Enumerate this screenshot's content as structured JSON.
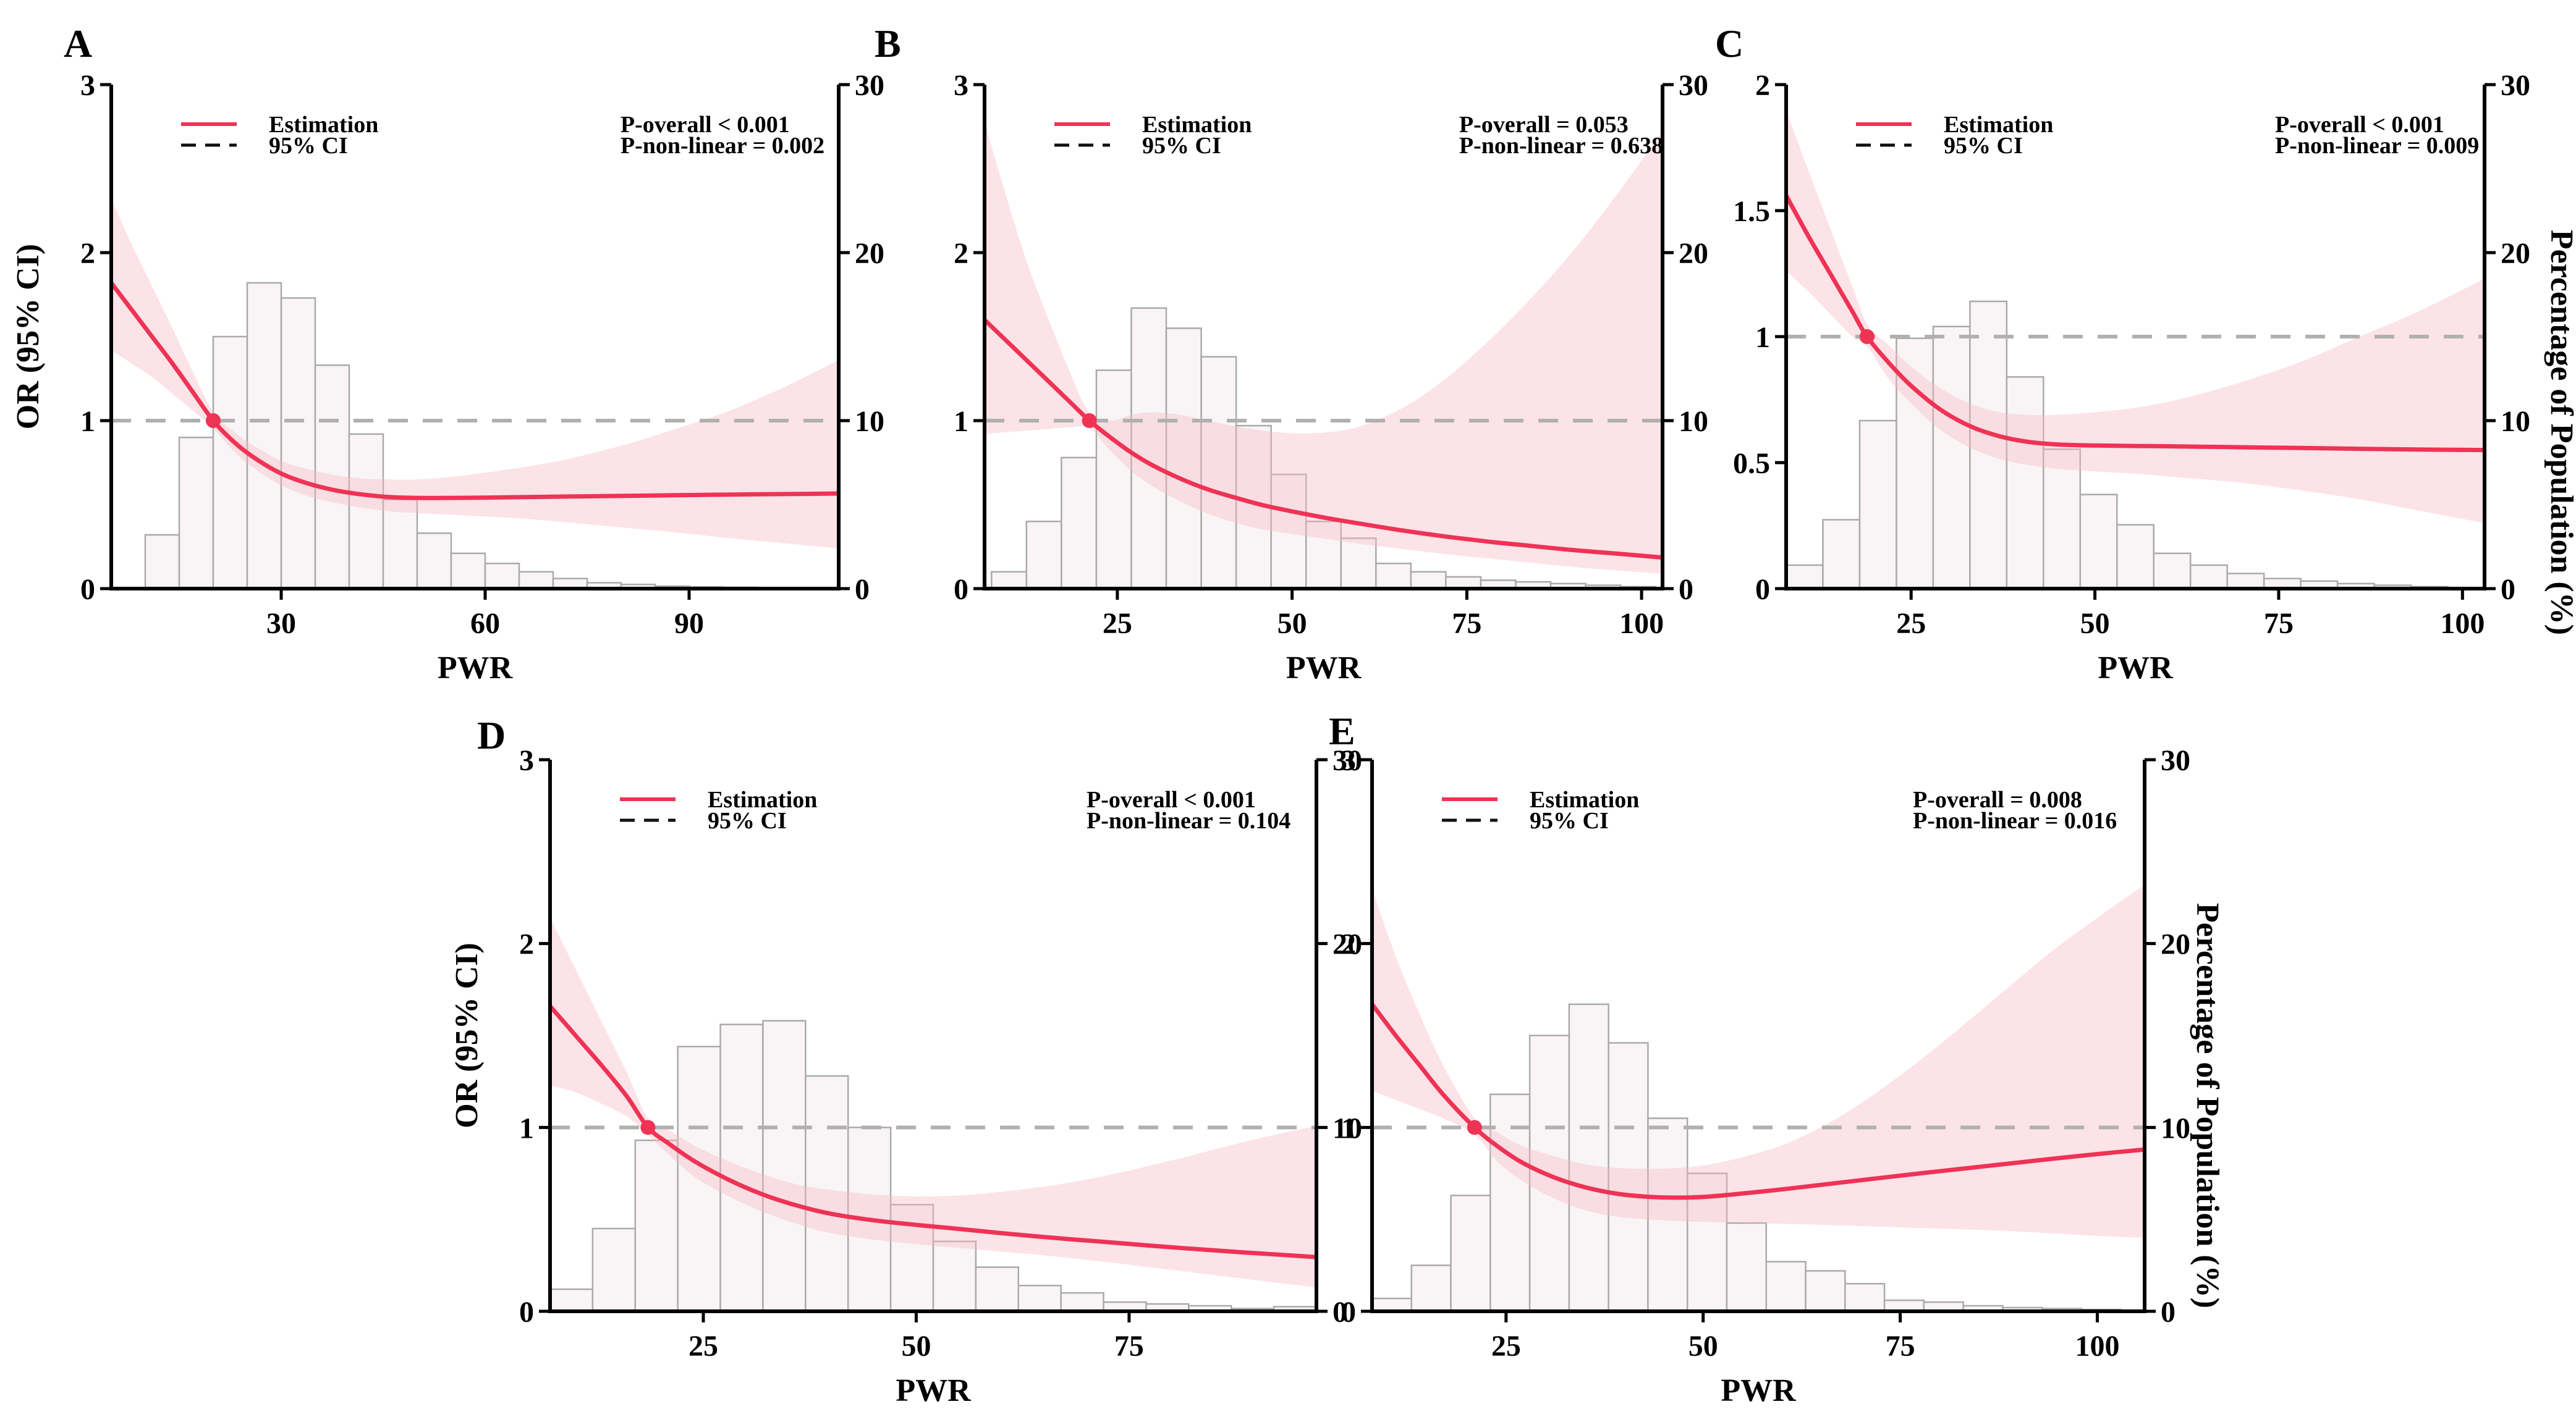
{
  "figure": {
    "x_axis_label": "PWR",
    "or_axis_label": "OR (95% CI)",
    "pct_axis_label": "Percentage of Population (%)",
    "legend": {
      "estimation_label": "Estimation",
      "ci_label": "95% CI"
    }
  },
  "colors": {
    "estimation_line": "#ee3355",
    "ci_band": "rgba(247,184,197,0.40)",
    "reference_line": "#b0b0b0",
    "histogram_fill": "#f9f5f6",
    "histogram_border": "#aaaaaa",
    "legend_ci_dash": "#111111",
    "text": "#000000"
  },
  "chart_data": [
    {
      "type": "line",
      "letter": "A",
      "annotations": {
        "p_overall": "P-overall < 0.001",
        "p_non_linear": "P-non-linear = 0.002"
      },
      "x_axis": {
        "min": 5,
        "max": 112,
        "ticks": [
          {
            "v": 30,
            "label": "30"
          },
          {
            "v": 60,
            "label": "60"
          },
          {
            "v": 90,
            "label": "90"
          }
        ]
      },
      "or_axis": {
        "min": 0,
        "max": 3,
        "show_label": true,
        "ticks": [
          {
            "v": 0,
            "label": "0"
          },
          {
            "v": 1,
            "label": "1"
          },
          {
            "v": 2,
            "label": "2"
          },
          {
            "v": 3,
            "label": "3"
          }
        ]
      },
      "pct_axis": {
        "min": 0,
        "max": 30,
        "show_label": false,
        "ticks": [
          {
            "v": 0,
            "label": "0"
          },
          {
            "v": 10,
            "label": "10"
          },
          {
            "v": 20,
            "label": "20"
          },
          {
            "v": 30,
            "label": "30"
          }
        ]
      },
      "reference_or": 1,
      "inflection_point": {
        "x": 20,
        "or": 1
      },
      "curve": [
        [
          5,
          1.82,
          1.42,
          2.32
        ],
        [
          8,
          1.66,
          1.34,
          2.05
        ],
        [
          11,
          1.5,
          1.26,
          1.8
        ],
        [
          14,
          1.34,
          1.16,
          1.55
        ],
        [
          17,
          1.17,
          1.06,
          1.29
        ],
        [
          20,
          1.0,
          0.955,
          1.05
        ],
        [
          23,
          0.875,
          0.82,
          0.935
        ],
        [
          26,
          0.78,
          0.715,
          0.85
        ],
        [
          30,
          0.685,
          0.615,
          0.76
        ],
        [
          34,
          0.625,
          0.55,
          0.71
        ],
        [
          38,
          0.585,
          0.51,
          0.675
        ],
        [
          42,
          0.56,
          0.48,
          0.655
        ],
        [
          46,
          0.545,
          0.46,
          0.65
        ],
        [
          50,
          0.54,
          0.45,
          0.65
        ],
        [
          55,
          0.54,
          0.44,
          0.665
        ],
        [
          60,
          0.542,
          0.43,
          0.69
        ],
        [
          66,
          0.545,
          0.415,
          0.725
        ],
        [
          72,
          0.548,
          0.395,
          0.77
        ],
        [
          80,
          0.552,
          0.365,
          0.85
        ],
        [
          88,
          0.556,
          0.335,
          0.95
        ],
        [
          96,
          0.56,
          0.3,
          1.06
        ],
        [
          104,
          0.563,
          0.27,
          1.2
        ],
        [
          112,
          0.566,
          0.24,
          1.36
        ]
      ],
      "histogram": {
        "bin_start": 10,
        "bin_width": 5,
        "percent": [
          3.2,
          9.0,
          15.0,
          18.2,
          17.3,
          13.3,
          9.2,
          5.3,
          3.3,
          2.1,
          1.5,
          1.0,
          0.6,
          0.35,
          0.25,
          0.15,
          0.1,
          0.08,
          0.05,
          0.03
        ]
      }
    },
    {
      "type": "line",
      "letter": "B",
      "annotations": {
        "p_overall": "P-overall = 0.053",
        "p_non_linear": "P-non-linear = 0.638"
      },
      "x_axis": {
        "min": 6,
        "max": 103,
        "ticks": [
          {
            "v": 25,
            "label": "25"
          },
          {
            "v": 50,
            "label": "50"
          },
          {
            "v": 75,
            "label": "75"
          },
          {
            "v": 100,
            "label": "100"
          }
        ]
      },
      "or_axis": {
        "min": 0,
        "max": 3,
        "show_label": false,
        "ticks": [
          {
            "v": 0,
            "label": "0"
          },
          {
            "v": 1,
            "label": "1"
          },
          {
            "v": 2,
            "label": "2"
          },
          {
            "v": 3,
            "label": "3"
          }
        ]
      },
      "pct_axis": {
        "min": 0,
        "max": 30,
        "show_label": false,
        "ticks": [
          {
            "v": 0,
            "label": "0"
          },
          {
            "v": 10,
            "label": "10"
          },
          {
            "v": 20,
            "label": "20"
          },
          {
            "v": 30,
            "label": "30"
          }
        ]
      },
      "reference_or": 1,
      "inflection_point": {
        "x": 21,
        "or": 1
      },
      "curve": [
        [
          6,
          1.6,
          0.92,
          2.78
        ],
        [
          9,
          1.48,
          0.93,
          2.35
        ],
        [
          12,
          1.36,
          0.94,
          1.95
        ],
        [
          15,
          1.24,
          0.95,
          1.62
        ],
        [
          18,
          1.12,
          0.96,
          1.31
        ],
        [
          21,
          1.0,
          0.955,
          1.045
        ],
        [
          24,
          0.9,
          0.82,
          1.0
        ],
        [
          27,
          0.81,
          0.7,
          1.035
        ],
        [
          30,
          0.735,
          0.61,
          1.05
        ],
        [
          34,
          0.655,
          0.52,
          1.035
        ],
        [
          38,
          0.59,
          0.445,
          1.0
        ],
        [
          42,
          0.54,
          0.39,
          0.965
        ],
        [
          46,
          0.495,
          0.35,
          0.94
        ],
        [
          50,
          0.46,
          0.325,
          0.925
        ],
        [
          55,
          0.42,
          0.295,
          0.93
        ],
        [
          60,
          0.385,
          0.265,
          0.97
        ],
        [
          66,
          0.345,
          0.235,
          1.08
        ],
        [
          72,
          0.31,
          0.205,
          1.25
        ],
        [
          78,
          0.28,
          0.18,
          1.47
        ],
        [
          84,
          0.255,
          0.155,
          1.72
        ],
        [
          90,
          0.23,
          0.13,
          2.0
        ],
        [
          96,
          0.21,
          0.11,
          2.32
        ],
        [
          103,
          0.185,
          0.09,
          2.72
        ]
      ],
      "histogram": {
        "bin_start": 7,
        "bin_width": 5,
        "percent": [
          1.0,
          4.0,
          7.8,
          13.0,
          16.7,
          15.5,
          13.8,
          9.7,
          6.8,
          4.0,
          3.0,
          1.5,
          1.0,
          0.7,
          0.5,
          0.4,
          0.3,
          0.2,
          0.12
        ]
      }
    },
    {
      "type": "line",
      "letter": "C",
      "annotations": {
        "p_overall": "P-overall < 0.001",
        "p_non_linear": "P-non-linear = 0.009"
      },
      "x_axis": {
        "min": 8,
        "max": 103,
        "ticks": [
          {
            "v": 25,
            "label": "25"
          },
          {
            "v": 50,
            "label": "50"
          },
          {
            "v": 75,
            "label": "75"
          },
          {
            "v": 100,
            "label": "100"
          }
        ]
      },
      "or_axis": {
        "min": 0,
        "max": 2,
        "show_label": false,
        "ticks": [
          {
            "v": 0,
            "label": "0"
          },
          {
            "v": 0.5,
            "label": "0.5"
          },
          {
            "v": 1,
            "label": "1"
          },
          {
            "v": 1.5,
            "label": "1.5"
          },
          {
            "v": 2,
            "label": "2"
          }
        ]
      },
      "pct_axis": {
        "min": 0,
        "max": 30,
        "show_label": true,
        "ticks": [
          {
            "v": 0,
            "label": "0"
          },
          {
            "v": 10,
            "label": "10"
          },
          {
            "v": 20,
            "label": "20"
          },
          {
            "v": 30,
            "label": "30"
          }
        ]
      },
      "reference_or": 1,
      "inflection_point": {
        "x": 19,
        "or": 1
      },
      "curve": [
        [
          8,
          1.56,
          1.26,
          1.9
        ],
        [
          11,
          1.4,
          1.18,
          1.66
        ],
        [
          14,
          1.25,
          1.09,
          1.43
        ],
        [
          17,
          1.1,
          1.0,
          1.2
        ],
        [
          19,
          1.0,
          0.96,
          1.05
        ],
        [
          22,
          0.895,
          0.83,
          0.965
        ],
        [
          25,
          0.805,
          0.735,
          0.88
        ],
        [
          29,
          0.71,
          0.63,
          0.795
        ],
        [
          33,
          0.645,
          0.56,
          0.735
        ],
        [
          37,
          0.605,
          0.515,
          0.7
        ],
        [
          41,
          0.582,
          0.49,
          0.69
        ],
        [
          45,
          0.572,
          0.475,
          0.69
        ],
        [
          50,
          0.568,
          0.465,
          0.7
        ],
        [
          56,
          0.566,
          0.455,
          0.72
        ],
        [
          62,
          0.564,
          0.44,
          0.755
        ],
        [
          70,
          0.561,
          0.42,
          0.82
        ],
        [
          78,
          0.558,
          0.39,
          0.9
        ],
        [
          86,
          0.555,
          0.355,
          1.0
        ],
        [
          94,
          0.552,
          0.31,
          1.1
        ],
        [
          103,
          0.55,
          0.26,
          1.23
        ]
      ],
      "histogram": {
        "bin_start": 8,
        "bin_width": 5,
        "percent": [
          1.4,
          4.1,
          10.0,
          14.9,
          15.6,
          17.1,
          12.6,
          8.3,
          5.6,
          3.8,
          2.1,
          1.4,
          0.9,
          0.6,
          0.45,
          0.3,
          0.2,
          0.12
        ]
      }
    },
    {
      "type": "line",
      "letter": "D",
      "annotations": {
        "p_overall": "P-overall < 0.001",
        "p_non_linear": "P-non-linear = 0.104"
      },
      "x_axis": {
        "min": 7,
        "max": 97,
        "ticks": [
          {
            "v": 25,
            "label": "25"
          },
          {
            "v": 50,
            "label": "50"
          },
          {
            "v": 75,
            "label": "75"
          }
        ]
      },
      "or_axis": {
        "min": 0,
        "max": 3,
        "show_label": true,
        "ticks": [
          {
            "v": 0,
            "label": "0"
          },
          {
            "v": 1,
            "label": "1"
          },
          {
            "v": 2,
            "label": "2"
          },
          {
            "v": 3,
            "label": "3"
          }
        ]
      },
      "pct_axis": {
        "min": 0,
        "max": 30,
        "show_label": false,
        "ticks": [
          {
            "v": 0,
            "label": "0"
          },
          {
            "v": 10,
            "label": "10"
          },
          {
            "v": 20,
            "label": "20"
          },
          {
            "v": 30,
            "label": "30"
          }
        ]
      },
      "reference_or": 1,
      "inflection_point": {
        "x": 18.5,
        "or": 1
      },
      "curve": [
        [
          7,
          1.66,
          1.23,
          2.14
        ],
        [
          10,
          1.5,
          1.19,
          1.86
        ],
        [
          13,
          1.34,
          1.13,
          1.58
        ],
        [
          16,
          1.17,
          1.06,
          1.3
        ],
        [
          18.5,
          1.0,
          0.96,
          1.05
        ],
        [
          21,
          0.91,
          0.85,
          0.985
        ],
        [
          24,
          0.815,
          0.73,
          0.9
        ],
        [
          28,
          0.715,
          0.625,
          0.815
        ],
        [
          32,
          0.635,
          0.54,
          0.745
        ],
        [
          36,
          0.575,
          0.475,
          0.69
        ],
        [
          40,
          0.53,
          0.425,
          0.66
        ],
        [
          45,
          0.495,
          0.39,
          0.635
        ],
        [
          50,
          0.47,
          0.365,
          0.625
        ],
        [
          55,
          0.448,
          0.345,
          0.63
        ],
        [
          60,
          0.425,
          0.325,
          0.65
        ],
        [
          66,
          0.4,
          0.3,
          0.685
        ],
        [
          72,
          0.378,
          0.27,
          0.735
        ],
        [
          80,
          0.348,
          0.225,
          0.82
        ],
        [
          88,
          0.322,
          0.18,
          0.915
        ],
        [
          97,
          0.295,
          0.13,
          1.01
        ]
      ],
      "histogram": {
        "bin_start": 7,
        "bin_width": 5,
        "percent": [
          1.2,
          4.5,
          9.3,
          14.4,
          15.6,
          15.8,
          12.8,
          10.0,
          5.8,
          3.8,
          2.4,
          1.4,
          1.0,
          0.5,
          0.4,
          0.3,
          0.15,
          0.25
        ]
      }
    },
    {
      "type": "line",
      "letter": "E",
      "annotations": {
        "p_overall": "P-overall = 0.008",
        "p_non_linear": "P-non-linear = 0.016"
      },
      "x_axis": {
        "min": 8,
        "max": 106,
        "ticks": [
          {
            "v": 25,
            "label": "25"
          },
          {
            "v": 50,
            "label": "50"
          },
          {
            "v": 75,
            "label": "75"
          },
          {
            "v": 100,
            "label": "100"
          }
        ]
      },
      "or_axis": {
        "min": 0,
        "max": 3,
        "show_label": false,
        "ticks": [
          {
            "v": 0,
            "label": "0"
          },
          {
            "v": 1,
            "label": "1"
          },
          {
            "v": 2,
            "label": "2"
          },
          {
            "v": 3,
            "label": "3"
          }
        ]
      },
      "pct_axis": {
        "min": 0,
        "max": 30,
        "show_label": true,
        "ticks": [
          {
            "v": 0,
            "label": "0"
          },
          {
            "v": 10,
            "label": "10"
          },
          {
            "v": 20,
            "label": "20"
          },
          {
            "v": 30,
            "label": "30"
          }
        ]
      },
      "reference_or": 1,
      "inflection_point": {
        "x": 21,
        "or": 1
      },
      "curve": [
        [
          8,
          1.67,
          1.2,
          2.3
        ],
        [
          11,
          1.5,
          1.15,
          1.93
        ],
        [
          14,
          1.34,
          1.1,
          1.62
        ],
        [
          17,
          1.18,
          1.05,
          1.34
        ],
        [
          21,
          1.0,
          0.96,
          1.05
        ],
        [
          24,
          0.895,
          0.81,
          0.97
        ],
        [
          27,
          0.81,
          0.71,
          0.9
        ],
        [
          31,
          0.73,
          0.615,
          0.845
        ],
        [
          35,
          0.675,
          0.55,
          0.8
        ],
        [
          39,
          0.64,
          0.515,
          0.78
        ],
        [
          43,
          0.623,
          0.5,
          0.775
        ],
        [
          47,
          0.618,
          0.49,
          0.78
        ],
        [
          51,
          0.625,
          0.485,
          0.8
        ],
        [
          56,
          0.645,
          0.48,
          0.85
        ],
        [
          61,
          0.668,
          0.475,
          0.92
        ],
        [
          67,
          0.698,
          0.468,
          1.05
        ],
        [
          73,
          0.728,
          0.46,
          1.22
        ],
        [
          80,
          0.762,
          0.45,
          1.45
        ],
        [
          87,
          0.795,
          0.44,
          1.7
        ],
        [
          94,
          0.828,
          0.425,
          1.95
        ],
        [
          100,
          0.855,
          0.41,
          2.14
        ],
        [
          106,
          0.88,
          0.4,
          2.32
        ]
      ],
      "histogram": {
        "bin_start": 8,
        "bin_width": 5,
        "percent": [
          0.7,
          2.5,
          6.3,
          11.8,
          15.0,
          16.7,
          14.6,
          10.5,
          7.5,
          4.8,
          2.7,
          2.2,
          1.5,
          0.6,
          0.5,
          0.3,
          0.2,
          0.15,
          0.1
        ]
      }
    }
  ]
}
